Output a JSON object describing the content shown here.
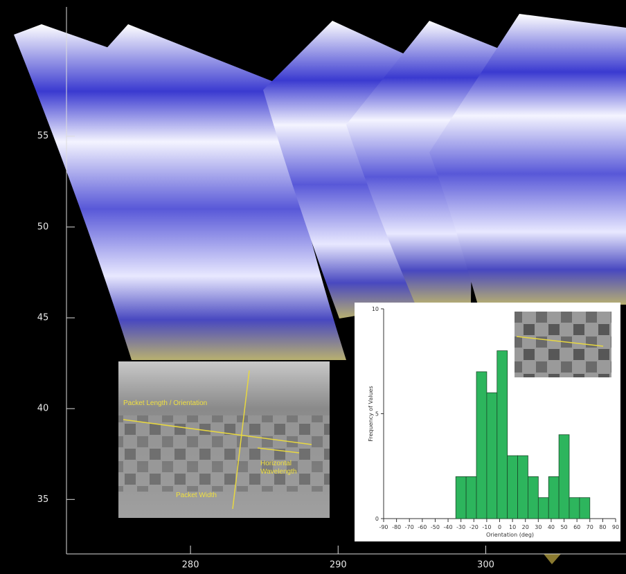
{
  "chart_data": [
    {
      "type": "image-map",
      "xlim": [
        271.6,
        309.5
      ],
      "ylim": [
        32,
        62.5
      ],
      "xticks": [
        280,
        290,
        300
      ],
      "yticks": [
        35,
        40,
        45,
        50,
        55
      ],
      "annotations": [
        "Packet Length / Orientation",
        "Horizontal\nWavelength",
        "Packet Width"
      ]
    },
    {
      "type": "histogram",
      "bins": [
        -34,
        -26,
        -18,
        -10,
        -2,
        6,
        14,
        22,
        30,
        38,
        46,
        54,
        62,
        70
      ],
      "values": [
        2,
        2,
        7,
        6,
        8,
        3,
        3,
        2,
        1,
        2,
        4,
        1,
        1
      ],
      "color": "#2db55d",
      "xlim": [
        -90,
        90
      ],
      "ylim": [
        0,
        10
      ],
      "xticks": [
        -90,
        -80,
        -70,
        -60,
        -50,
        -40,
        -30,
        -20,
        -10,
        0,
        10,
        20,
        30,
        40,
        50,
        60,
        70,
        80,
        90
      ],
      "yticks": [
        0,
        5,
        10
      ],
      "xlabel": "Orientation (deg)",
      "ylabel": "Frequency of Values"
    }
  ]
}
